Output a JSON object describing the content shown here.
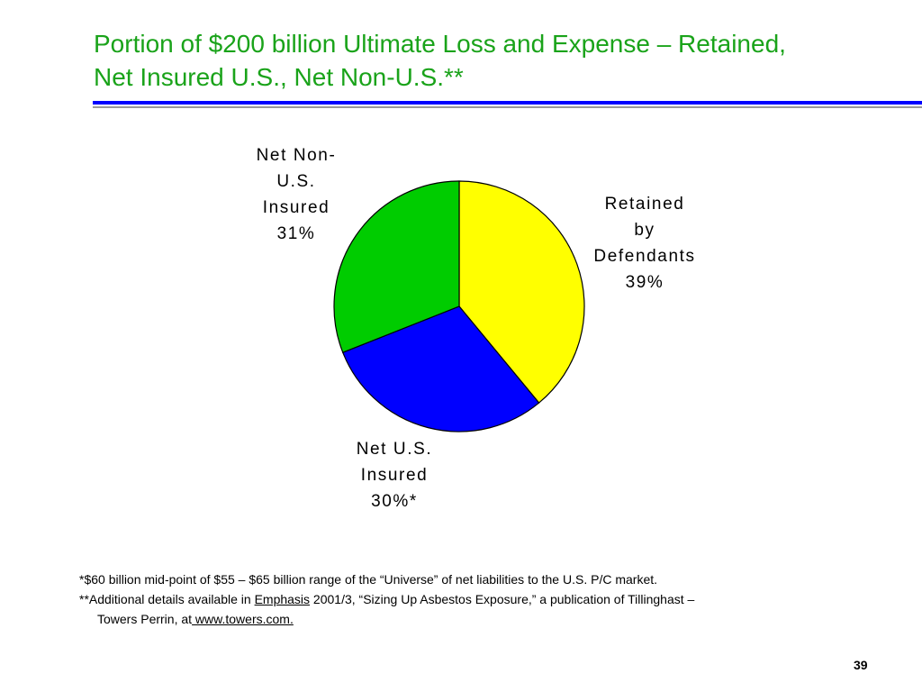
{
  "slide": {
    "title_line1": "Portion of $200 billion Ultimate Loss and Expense – Retained,",
    "title_line2": "Net Insured U.S., Net Non-U.S.**",
    "page_number": "39"
  },
  "colors": {
    "title": "#1aa31a",
    "rule": "#0000ff",
    "retained": "#ffff00",
    "net_us": "#0000ff",
    "net_non_us": "#00cc00"
  },
  "chart_data": {
    "type": "pie",
    "slices": [
      {
        "label_lines": [
          "Retained",
          "by",
          "Defendants",
          "39%"
        ],
        "value": 39,
        "color": "#ffff00"
      },
      {
        "label_lines": [
          "Net U.S.",
          "Insured",
          "30%*"
        ],
        "value": 30,
        "color": "#0000ff"
      },
      {
        "label_lines": [
          "Net Non-",
          "U.S.",
          "Insured",
          "31%"
        ],
        "value": 31,
        "color": "#00cc00"
      }
    ]
  },
  "footnotes": {
    "line1": "*$60 billion mid-point of $55 – $65 billion range of the “Universe” of net liabilities to the U.S. P/C market.",
    "line2_prefix": "**Additional details available in ",
    "line2_link": "Emphasis",
    "line2_suffix": " 2001/3, “Sizing Up Asbestos Exposure,” a publication of Tillinghast –",
    "line3_prefix": "Towers Perrin, at",
    "line3_link": " www.towers.com."
  }
}
